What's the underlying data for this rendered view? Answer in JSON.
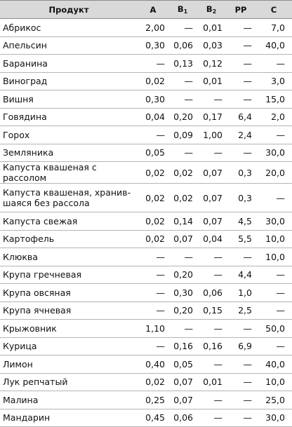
{
  "columns": {
    "product": "Продукт",
    "a": "A",
    "b1_base": "B",
    "b1_sub": "1",
    "b2_base": "B",
    "b2_sub": "2",
    "pp": "PP",
    "c": "C"
  },
  "rows": [
    {
      "product": "Абрикос",
      "a": "2,00",
      "b1": "—",
      "b2": "0,01",
      "pp": "—",
      "c": "7,0"
    },
    {
      "product": "Апельсин",
      "a": "0,30",
      "b1": "0,06",
      "b2": "0,03",
      "pp": "—",
      "c": "40,0"
    },
    {
      "product": "Баранина",
      "a": "—",
      "b1": "0,13",
      "b2": "0,12",
      "pp": "—",
      "c": "—"
    },
    {
      "product": "Виноград",
      "a": "0,02",
      "b1": "—",
      "b2": "0,01",
      "pp": "—",
      "c": "3,0"
    },
    {
      "product": "Вишня",
      "a": "0,30",
      "b1": "—",
      "b2": "—",
      "pp": "—",
      "c": "15,0"
    },
    {
      "product": "Говядина",
      "a": "0,04",
      "b1": "0,20",
      "b2": "0,17",
      "pp": "6,4",
      "c": "2,0"
    },
    {
      "product": "Горох",
      "a": "—",
      "b1": "0,09",
      "b2": "1,00",
      "pp": "2,4",
      "c": "—"
    },
    {
      "product": "Земляника",
      "a": "0,05",
      "b1": "—",
      "b2": "—",
      "pp": "—",
      "c": "30,0"
    },
    {
      "product": "Капуста квашеная с рассолом",
      "a": "0,02",
      "b1": "0,02",
      "b2": "0,07",
      "pp": "0,3",
      "c": "20,0"
    },
    {
      "product": "Капуста квашеная, хранив­шаяся без рассола",
      "a": "0,02",
      "b1": "0,02",
      "b2": "0,07",
      "pp": "0,3",
      "c": "—"
    },
    {
      "product": "Капуста свежая",
      "a": "0,02",
      "b1": "0,14",
      "b2": "0,07",
      "pp": "4,5",
      "c": "30,0"
    },
    {
      "product": "Картофель",
      "a": "0,02",
      "b1": "0,07",
      "b2": "0,04",
      "pp": "5,5",
      "c": "10,0"
    },
    {
      "product": "Клюква",
      "a": "—",
      "b1": "—",
      "b2": "—",
      "pp": "—",
      "c": "10,0"
    },
    {
      "product": "Крупа гречневая",
      "a": "—",
      "b1": "0,20",
      "b2": "—",
      "pp": "4,4",
      "c": "—"
    },
    {
      "product": "Крупа овсяная",
      "a": "—",
      "b1": "0,30",
      "b2": "0,06",
      "pp": "1,0",
      "c": "—"
    },
    {
      "product": "Крупа ячневая",
      "a": "—",
      "b1": "0,20",
      "b2": "0,15",
      "pp": "2,5",
      "c": "—"
    },
    {
      "product": "Крыжовник",
      "a": "1,10",
      "b1": "—",
      "b2": "—",
      "pp": "—",
      "c": "50,0"
    },
    {
      "product": "Курица",
      "a": "—",
      "b1": "0,16",
      "b2": "0,16",
      "pp": "6,9",
      "c": "—"
    },
    {
      "product": "Лимон",
      "a": "0,40",
      "b1": "0,05",
      "b2": "—",
      "pp": "—",
      "c": "40,0"
    },
    {
      "product": "Лук репчатый",
      "a": "0,02",
      "b1": "0,07",
      "b2": "0,01",
      "pp": "—",
      "c": "10,0"
    },
    {
      "product": "Малина",
      "a": "0,25",
      "b1": "0,07",
      "b2": "—",
      "pp": "—",
      "c": "25,0"
    },
    {
      "product": "Мандарин",
      "a": "0,45",
      "b1": "0,06",
      "b2": "—",
      "pp": "—",
      "c": "30,0"
    }
  ]
}
